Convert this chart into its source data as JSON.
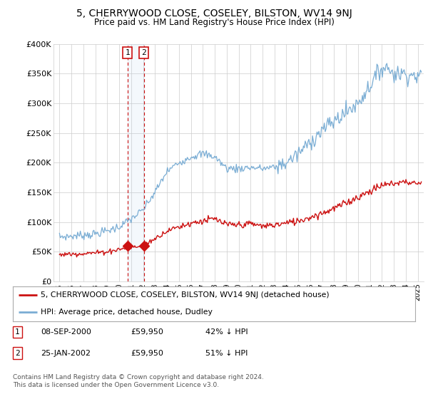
{
  "title": "5, CHERRYWOOD CLOSE, COSELEY, BILSTON, WV14 9NJ",
  "subtitle": "Price paid vs. HM Land Registry's House Price Index (HPI)",
  "title_fontsize": 10,
  "subtitle_fontsize": 8.5,
  "ylabel_ticks": [
    "£0",
    "£50K",
    "£100K",
    "£150K",
    "£200K",
    "£250K",
    "£300K",
    "£350K",
    "£400K"
  ],
  "ytick_values": [
    0,
    50000,
    100000,
    150000,
    200000,
    250000,
    300000,
    350000,
    400000
  ],
  "ylim": [
    0,
    400000
  ],
  "xlim_start": 1994.5,
  "xlim_end": 2025.5,
  "hpi_color": "#7aadd4",
  "price_color": "#cc1111",
  "sale1_date": 2000.69,
  "sale1_price": 59950,
  "sale2_date": 2002.07,
  "sale2_price": 59950,
  "legend_line1": "5, CHERRYWOOD CLOSE, COSELEY, BILSTON, WV14 9NJ (detached house)",
  "legend_line2": "HPI: Average price, detached house, Dudley",
  "footer": "Contains HM Land Registry data © Crown copyright and database right 2024.\nThis data is licensed under the Open Government Licence v3.0.",
  "background_color": "#ffffff",
  "grid_color": "#cccccc",
  "hpi_knots": [
    1995,
    1996,
    1997,
    1998,
    1999,
    2000,
    2001,
    2002,
    2003,
    2004,
    2005,
    2006,
    2007,
    2008,
    2009,
    2010,
    2011,
    2012,
    2013,
    2014,
    2015,
    2016,
    2017,
    2018,
    2019,
    2020,
    2021,
    2022,
    2022.5,
    2023,
    2024,
    2025
  ],
  "hpi_vals": [
    75000,
    76000,
    78000,
    80000,
    85000,
    92000,
    105000,
    120000,
    150000,
    185000,
    200000,
    210000,
    215000,
    210000,
    190000,
    190000,
    192000,
    190000,
    192000,
    200000,
    215000,
    235000,
    255000,
    270000,
    285000,
    300000,
    330000,
    360000,
    360000,
    350000,
    350000,
    345000
  ],
  "red_knots": [
    1995,
    1996,
    1997,
    1998,
    1999,
    2000,
    2001,
    2002,
    2003,
    2004,
    2005,
    2006,
    2007,
    2008,
    2009,
    2010,
    2011,
    2012,
    2013,
    2014,
    2015,
    2016,
    2017,
    2018,
    2019,
    2020,
    2021,
    2022,
    2023,
    2024,
    2025
  ],
  "red_vals": [
    45000,
    46000,
    47000,
    48000,
    50000,
    54000,
    57000,
    60000,
    72000,
    85000,
    92000,
    98000,
    102000,
    105000,
    95000,
    95000,
    97000,
    93000,
    95000,
    98000,
    102000,
    108000,
    115000,
    123000,
    132000,
    142000,
    152000,
    162000,
    165000,
    168000,
    165000
  ]
}
